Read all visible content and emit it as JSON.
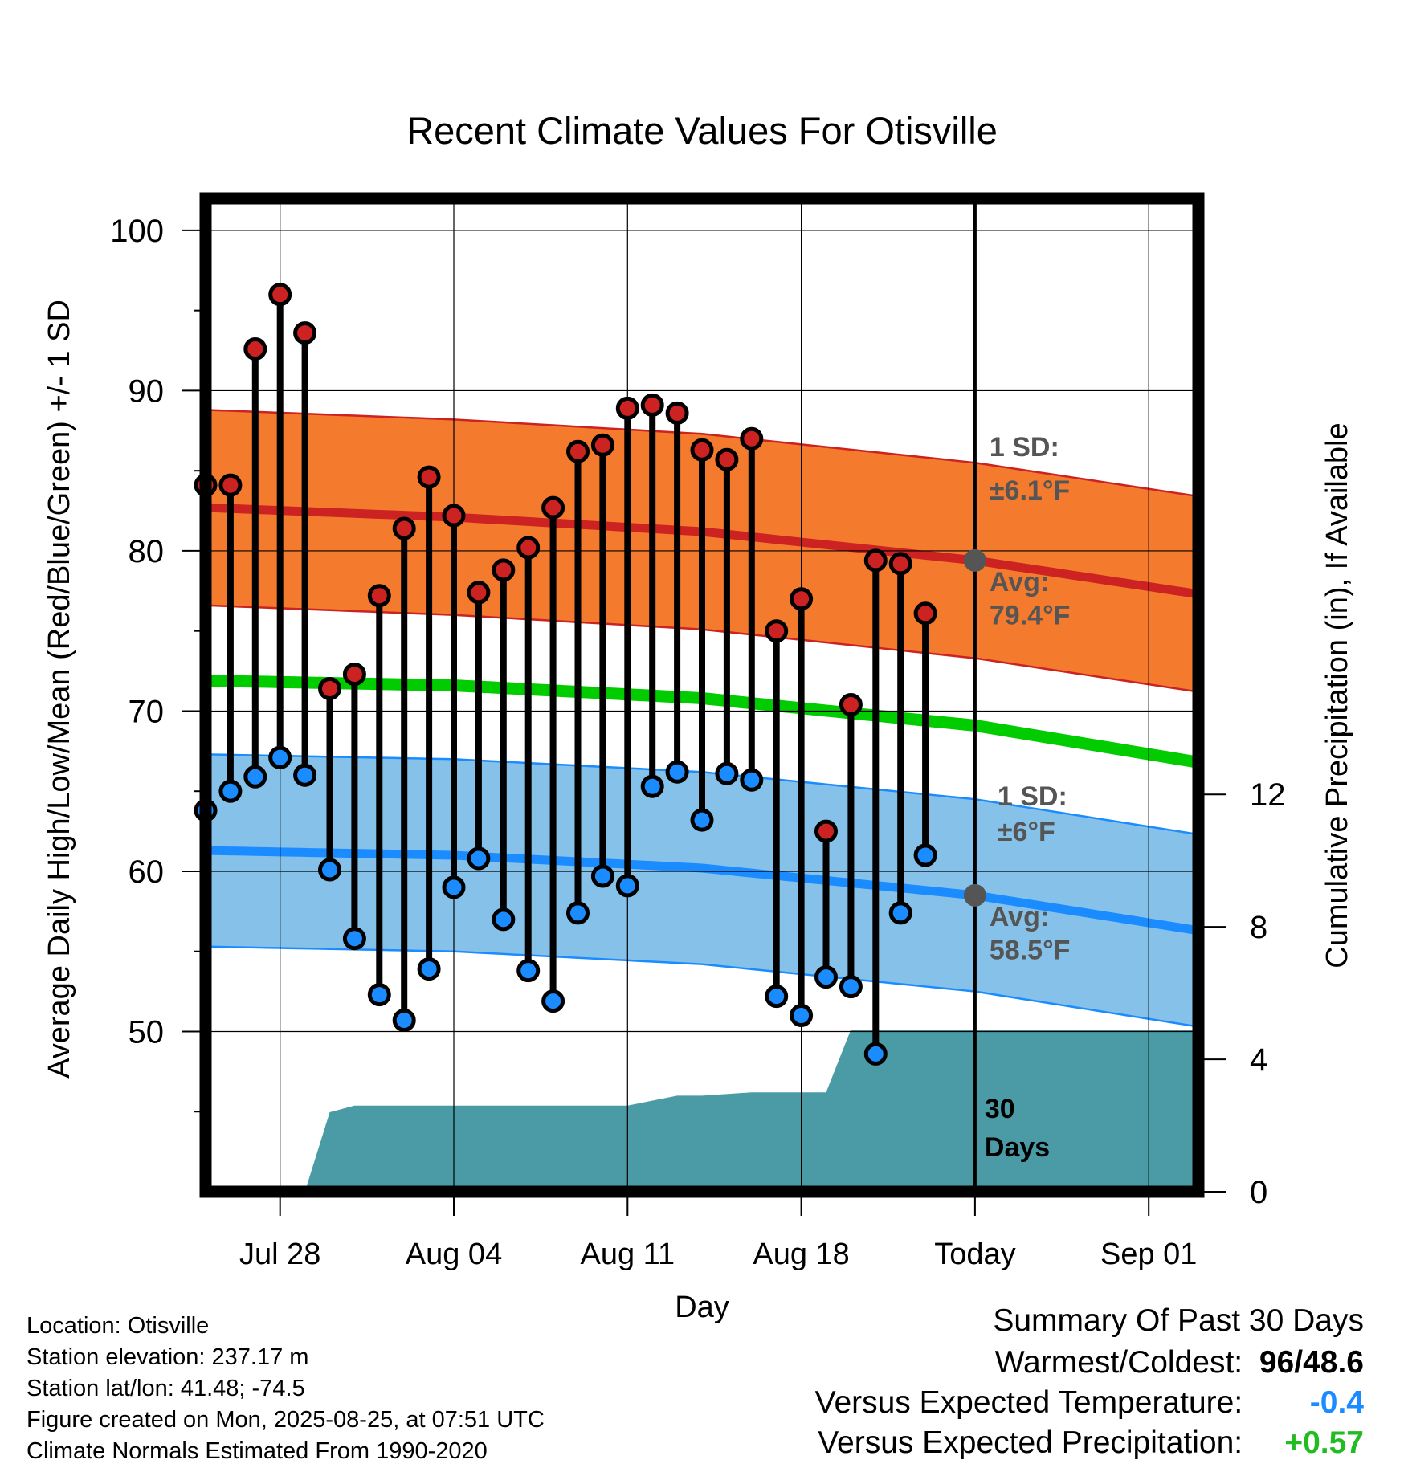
{
  "chart_data": {
    "type": "line",
    "title": "Recent Climate Values For Otisville",
    "xlabel": "Day",
    "ylabel": "Average Daily High/Low/Mean (Red/Blue/Green) +/- 1 SD",
    "y2label": "Cumulative Precipitation (in), If Available",
    "x_tick_labels": [
      "Jul 28",
      "Aug 04",
      "Aug 11",
      "Aug 18",
      "Today",
      "Sep 01"
    ],
    "x_tick_dates": [
      "2025-07-28",
      "2025-08-04",
      "2025-08-11",
      "2025-08-18",
      "2025-08-25",
      "2025-09-01"
    ],
    "x_range": [
      "2025-07-25",
      "2025-09-03"
    ],
    "ylim": [
      40,
      102
    ],
    "y_ticks": [
      50,
      60,
      70,
      80,
      90,
      100
    ],
    "y2lim": [
      0,
      30
    ],
    "y2_ticks": [
      0,
      4,
      8,
      12
    ],
    "grid": true,
    "colors": {
      "high": "#cc2222",
      "high_band": "#f47a2e",
      "low": "#1a8cff",
      "low_band": "#85c1e8",
      "mean": "#00cc00",
      "precip": "#4a9ba5",
      "today_marker": "#555555",
      "annot": "#555555"
    },
    "dates": [
      "2025-07-25",
      "2025-07-26",
      "2025-07-27",
      "2025-07-28",
      "2025-07-29",
      "2025-07-30",
      "2025-07-31",
      "2025-08-01",
      "2025-08-02",
      "2025-08-03",
      "2025-08-04",
      "2025-08-05",
      "2025-08-06",
      "2025-08-07",
      "2025-08-08",
      "2025-08-09",
      "2025-08-10",
      "2025-08-11",
      "2025-08-12",
      "2025-08-13",
      "2025-08-14",
      "2025-08-15",
      "2025-08-16",
      "2025-08-17",
      "2025-08-18",
      "2025-08-19",
      "2025-08-20",
      "2025-08-21",
      "2025-08-22",
      "2025-08-23",
      "2025-08-24"
    ],
    "daily_high": [
      84.1,
      84.1,
      92.6,
      96.0,
      93.6,
      71.4,
      72.3,
      77.2,
      81.4,
      84.6,
      82.2,
      77.4,
      78.8,
      80.2,
      82.7,
      86.2,
      86.6,
      88.9,
      89.1,
      88.6,
      86.3,
      85.7,
      87.0,
      75.0,
      77.0,
      62.5,
      70.4,
      79.4,
      79.2,
      76.1,
      null
    ],
    "daily_low": [
      63.8,
      65.0,
      65.9,
      67.1,
      66.0,
      60.1,
      55.8,
      52.3,
      50.7,
      53.9,
      59.0,
      60.8,
      57.0,
      53.8,
      51.9,
      57.4,
      59.7,
      59.1,
      65.3,
      66.2,
      63.2,
      66.1,
      65.7,
      52.2,
      51.0,
      53.4,
      52.8,
      48.6,
      57.4,
      61.0,
      null
    ],
    "normal_dates": [
      "2025-07-25",
      "2025-08-04",
      "2025-08-14",
      "2025-08-25",
      "2025-09-03"
    ],
    "normal_high": [
      82.7,
      82.1,
      81.2,
      79.4,
      77.3
    ],
    "normal_low": [
      61.3,
      61.0,
      60.2,
      58.5,
      56.3
    ],
    "normal_mean": [
      71.9,
      71.6,
      70.8,
      69.1,
      66.8
    ],
    "high_sd": 6.1,
    "low_sd": 6.0,
    "precip_dates": [
      "2025-07-29",
      "2025-07-30",
      "2025-07-31",
      "2025-08-11",
      "2025-08-13",
      "2025-08-14",
      "2025-08-16",
      "2025-08-18",
      "2025-08-19",
      "2025-08-20",
      "2025-09-03"
    ],
    "cumulative_precip": [
      0.0,
      2.4,
      2.6,
      2.6,
      2.9,
      2.9,
      3.0,
      3.0,
      3.0,
      4.9,
      4.9
    ],
    "annotations": {
      "high_sd": "1 SD:",
      "high_sd_value": "±6.1°F",
      "high_avg": "Avg:",
      "high_avg_value": "79.4°F",
      "low_sd": "1 SD:",
      "low_sd_value": "±6°F",
      "low_avg": "Avg:",
      "low_avg_value": "58.5°F",
      "days_count": "30",
      "days_label": "Days"
    }
  },
  "metadata_lines": [
    "Location: Otisville",
    "Station elevation: 237.17 m",
    "Station lat/lon: 41.48; -74.5",
    "Figure created on Mon, 2025-08-25, at 07:51 UTC",
    "Climate Normals Estimated From 1990-2020"
  ],
  "summary": {
    "title": "Summary Of Past 30 Days",
    "warm_label": "Warmest/Coldest:",
    "warm_hi": "96",
    "sep": "/",
    "warm_lo": "48.6",
    "temp_label": "Versus Expected Temperature:",
    "temp_value": "-0.4",
    "temp_color": "#1a8cff",
    "precip_label": "Versus Expected Precipitation:",
    "precip_value": "+0.57",
    "precip_color": "#22bb22"
  }
}
